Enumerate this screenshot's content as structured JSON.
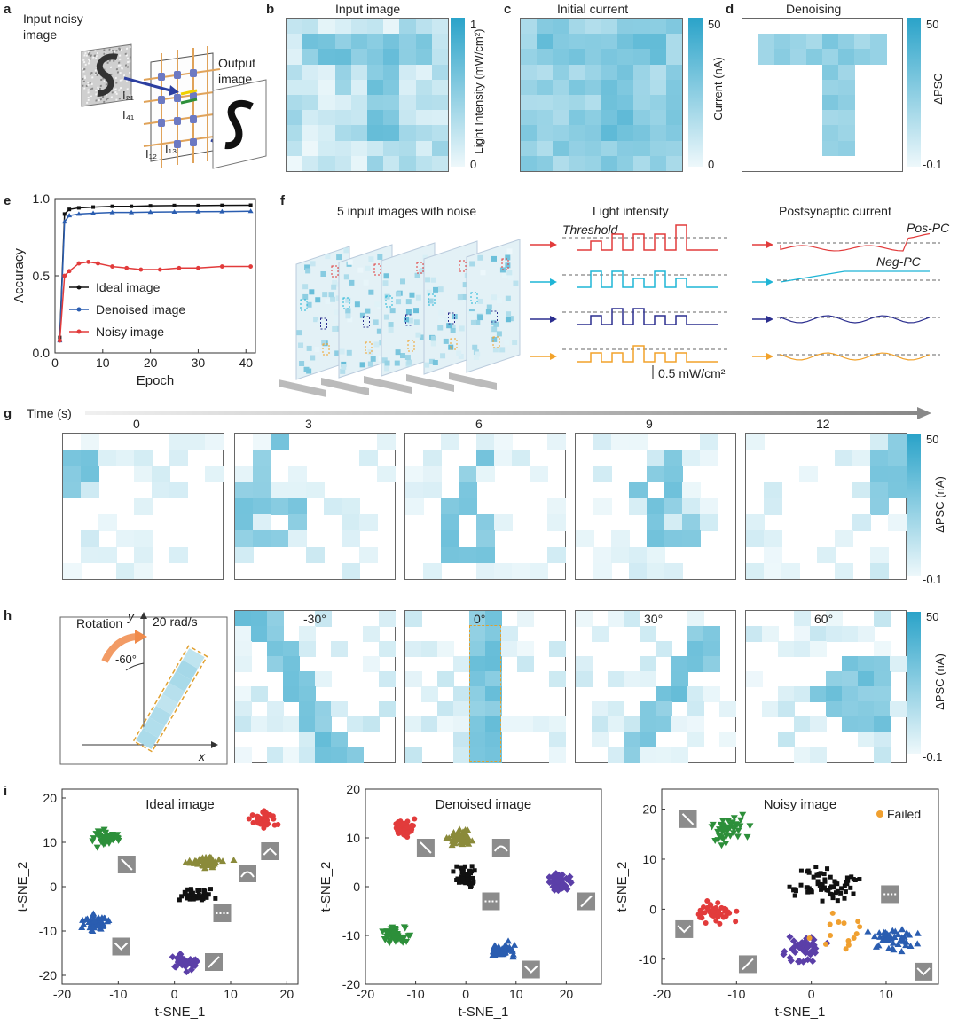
{
  "panel_labels": {
    "a": "a",
    "b": "b",
    "c": "c",
    "d": "d",
    "e": "e",
    "f": "f",
    "g": "g",
    "h": "h",
    "i": "i"
  },
  "a": {
    "input_label": "Input noisy image",
    "output_label": "Output image",
    "i21": "I₂₁",
    "i41": "I₄₁",
    "i12": "I₁₂",
    "i13": "I₁₃"
  },
  "b": {
    "title": "Input image",
    "cbar_label": "Light Intensity (mW/cm²)",
    "cbar_max": "1",
    "cbar_min": "0"
  },
  "c": {
    "title": "Initial current",
    "cbar_label": "Current (nA)",
    "cbar_max": "50",
    "cbar_min": "0"
  },
  "d": {
    "title": "Denoising",
    "cbar_label": "ΔPSC",
    "cbar_max": "50",
    "cbar_min": "-0.1"
  },
  "f": {
    "title_left": "5 input images with noise",
    "title_mid": "Light intensity",
    "title_right": "Postsynaptic current",
    "threshold": "Threshold",
    "pos_pc": "Pos-PC",
    "neg_pc": "Neg-PC",
    "scale": "0.5 mW/cm²",
    "colors": [
      "#e23b3b",
      "#1fb5d6",
      "#2b2e8f",
      "#f2a22a"
    ]
  },
  "g": {
    "time_label": "Time (s)",
    "times": [
      "0",
      "3",
      "6",
      "9",
      "12"
    ],
    "cbar_label": "ΔPSC (nA)",
    "cbar_max": "50",
    "cbar_min": "-0.1"
  },
  "h": {
    "rotation": "Rotation",
    "speed": "20 rad/s",
    "angle": "-60°",
    "x": "x",
    "y": "y",
    "angles": [
      "-30°",
      "0°",
      "30°",
      "60°"
    ],
    "cbar_label": "ΔPSC (nA)",
    "cbar_max": "50",
    "cbar_min": "-0.1"
  },
  "chart_data": [
    {
      "id": "e",
      "type": "line",
      "xlabel": "Epoch",
      "ylabel": "Accuracy",
      "xlim": [
        0,
        42
      ],
      "ylim": [
        0,
        1.0
      ],
      "xticks": [
        "0",
        "10",
        "20",
        "30",
        "40"
      ],
      "yticks": [
        "0.0",
        "0.5",
        "1.0"
      ],
      "legend_placement": "center-right",
      "series": [
        {
          "name": "Ideal image",
          "color": "#111111",
          "marker": "square",
          "x": [
            1,
            2,
            3,
            5,
            8,
            12,
            16,
            20,
            25,
            30,
            35,
            41
          ],
          "y": [
            0.1,
            0.9,
            0.93,
            0.94,
            0.945,
            0.95,
            0.95,
            0.953,
            0.955,
            0.955,
            0.956,
            0.957
          ]
        },
        {
          "name": "Denoised image",
          "color": "#2a5db0",
          "marker": "triangle",
          "x": [
            1,
            2,
            3,
            5,
            8,
            12,
            16,
            20,
            25,
            30,
            35,
            41
          ],
          "y": [
            0.08,
            0.85,
            0.89,
            0.9,
            0.905,
            0.91,
            0.91,
            0.912,
            0.914,
            0.915,
            0.916,
            0.918
          ]
        },
        {
          "name": "Noisy image",
          "color": "#e23b3b",
          "marker": "circle",
          "x": [
            1,
            2,
            3,
            5,
            7,
            9,
            12,
            15,
            18,
            22,
            26,
            30,
            35,
            41
          ],
          "y": [
            0.08,
            0.5,
            0.53,
            0.58,
            0.59,
            0.58,
            0.56,
            0.55,
            0.54,
            0.54,
            0.55,
            0.55,
            0.56,
            0.56
          ]
        }
      ]
    },
    {
      "id": "i1",
      "type": "scatter",
      "title": "Ideal image",
      "xlabel": "t-SNE_1",
      "ylabel": "t-SNE_2",
      "xlim": [
        -20,
        22
      ],
      "ylim": [
        -22,
        22
      ],
      "xticks": [
        "-20",
        "-10",
        "0",
        "10",
        "20"
      ],
      "yticks": [
        "-20",
        "-10",
        "0",
        "10",
        "20"
      ],
      "clusters": [
        {
          "color": "#2d8f3a",
          "marker": "tri-down",
          "cx": -12,
          "cy": 11,
          "rx": 3.2,
          "ry": 2.8,
          "n": 45
        },
        {
          "color": "#e23b3b",
          "marker": "circle",
          "cx": 16,
          "cy": 15,
          "rx": 3.0,
          "ry": 2.4,
          "n": 45
        },
        {
          "color": "#8a8a3a",
          "marker": "triangle",
          "cx": 6,
          "cy": 5.5,
          "rx": 4.8,
          "ry": 1.8,
          "n": 45
        },
        {
          "color": "#111111",
          "marker": "square",
          "cx": 4,
          "cy": -2,
          "rx": 4.0,
          "ry": 2.0,
          "n": 45
        },
        {
          "color": "#2a5db0",
          "marker": "triangle",
          "cx": -14,
          "cy": -8,
          "rx": 3.2,
          "ry": 2.8,
          "n": 45
        },
        {
          "color": "#5b3fa8",
          "marker": "diamond",
          "cx": 2,
          "cy": -17,
          "rx": 3.2,
          "ry": 2.8,
          "n": 45
        }
      ],
      "insets": [
        {
          "x": 17,
          "y": 8,
          "glyph": "chev-up"
        },
        {
          "x": -8.5,
          "y": 5,
          "glyph": "diag"
        },
        {
          "x": 13,
          "y": 3,
          "glyph": "arc"
        },
        {
          "x": 8.5,
          "y": -6,
          "glyph": "dots"
        },
        {
          "x": -9.5,
          "y": -13.5,
          "glyph": "env"
        },
        {
          "x": 7,
          "y": -17,
          "glyph": "diag2"
        }
      ]
    },
    {
      "id": "i2",
      "type": "scatter",
      "title": "Denoised image",
      "xlabel": "t-SNE_1",
      "ylabel": "t-SNE_2",
      "xlim": [
        -20,
        27
      ],
      "ylim": [
        -20,
        20
      ],
      "xticks": [
        "-20",
        "-10",
        "0",
        "10",
        "20"
      ],
      "yticks": [
        "-20",
        "-10",
        "0",
        "10",
        "20"
      ],
      "clusters": [
        {
          "color": "#e23b3b",
          "marker": "circle",
          "cx": -12,
          "cy": 12,
          "rx": 3.0,
          "ry": 3.2,
          "n": 45
        },
        {
          "color": "#8a8a3a",
          "marker": "triangle",
          "cx": -1,
          "cy": 10,
          "rx": 4.0,
          "ry": 2.0,
          "n": 45
        },
        {
          "color": "#111111",
          "marker": "square",
          "cx": 0,
          "cy": 2,
          "rx": 3.2,
          "ry": 3.0,
          "n": 45
        },
        {
          "color": "#5b3fa8",
          "marker": "diamond",
          "cx": 19,
          "cy": 1,
          "rx": 3.2,
          "ry": 2.6,
          "n": 45
        },
        {
          "color": "#2d8f3a",
          "marker": "tri-down",
          "cx": -14,
          "cy": -10,
          "rx": 3.6,
          "ry": 2.6,
          "n": 45
        },
        {
          "color": "#2a5db0",
          "marker": "triangle",
          "cx": 7,
          "cy": -13,
          "rx": 3.4,
          "ry": 2.2,
          "n": 45
        }
      ],
      "insets": [
        {
          "x": -8,
          "y": 8,
          "glyph": "diag"
        },
        {
          "x": 7,
          "y": 8,
          "glyph": "arc"
        },
        {
          "x": 5,
          "y": -3,
          "glyph": "dots"
        },
        {
          "x": 24,
          "y": -3,
          "glyph": "diag2"
        },
        {
          "x": 13,
          "y": -17,
          "glyph": "env"
        }
      ]
    },
    {
      "id": "i3",
      "type": "scatter",
      "title": "Noisy image",
      "xlabel": "t-SNE_1",
      "ylabel": "t-SNE_2",
      "xlim": [
        -20,
        17
      ],
      "ylim": [
        -15,
        24
      ],
      "xticks": [
        "-20",
        "-10",
        "0",
        "10"
      ],
      "yticks": [
        "-10",
        "0",
        "10",
        "20"
      ],
      "legend_entry": "Failed",
      "legend_color": "#f0a030",
      "clusters": [
        {
          "color": "#2d8f3a",
          "marker": "tri-down",
          "cx": -11,
          "cy": 16,
          "rx": 3.6,
          "ry": 4.0,
          "n": 45
        },
        {
          "color": "#111111",
          "marker": "square",
          "cx": 2,
          "cy": 5,
          "rx": 6.5,
          "ry": 4.6,
          "n": 70
        },
        {
          "color": "#e23b3b",
          "marker": "circle",
          "cx": -13,
          "cy": -1,
          "rx": 3.6,
          "ry": 3.4,
          "n": 45
        },
        {
          "color": "#5b3fa8",
          "marker": "diamond",
          "cx": -1,
          "cy": -8,
          "rx": 4.0,
          "ry": 3.4,
          "n": 45
        },
        {
          "color": "#2a5db0",
          "marker": "triangle",
          "cx": 11,
          "cy": -6,
          "rx": 4.2,
          "ry": 3.0,
          "n": 45
        },
        {
          "color": "#f0a030",
          "marker": "circle",
          "cx": 3,
          "cy": -4,
          "rx": 6.0,
          "ry": 7.0,
          "n": 14
        }
      ],
      "insets": [
        {
          "x": -16.5,
          "y": 18,
          "glyph": "diag"
        },
        {
          "x": 10.5,
          "y": 3,
          "glyph": "dots"
        },
        {
          "x": -17,
          "y": -4,
          "glyph": "env"
        },
        {
          "x": -8.5,
          "y": -11,
          "glyph": "diag2"
        },
        {
          "x": 15,
          "y": -12.5,
          "glyph": "env"
        }
      ]
    }
  ]
}
